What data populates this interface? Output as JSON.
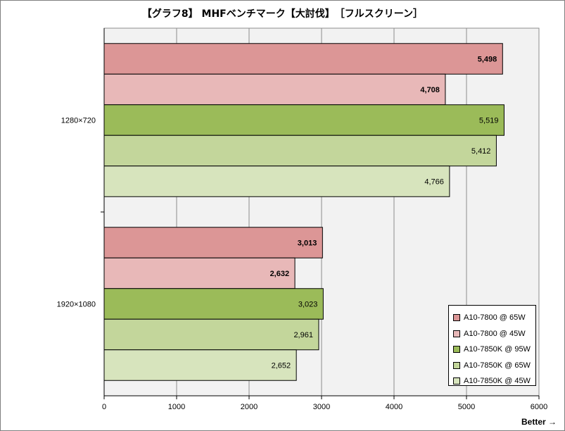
{
  "title": "【グラフ8】 MHFベンチマーク【大討伐】　［フルスクリーン］",
  "better_label": "Better →",
  "chart_data": {
    "type": "bar",
    "orientation": "horizontal",
    "title": "【グラフ8】 MHFベンチマーク【大討伐】　［フルスクリーン］",
    "categories": [
      "1280×720",
      "1920×1080"
    ],
    "series": [
      {
        "name": "A10-7800 @ 65W",
        "color": "#dc9696",
        "bold_label": true,
        "values": [
          5498,
          3013
        ],
        "labels": [
          "5,498",
          "3,013"
        ]
      },
      {
        "name": "A10-7800 @ 45W",
        "color": "#e8b8b8",
        "bold_label": true,
        "values": [
          4708,
          2632
        ],
        "labels": [
          "4,708",
          "2,632"
        ]
      },
      {
        "name": "A10-7850K @ 95W",
        "color": "#9bbb59",
        "bold_label": false,
        "values": [
          5519,
          3023
        ],
        "labels": [
          "5,519",
          "3,023"
        ]
      },
      {
        "name": "A10-7850K @ 65W",
        "color": "#c3d69b",
        "bold_label": false,
        "values": [
          5412,
          2961
        ],
        "labels": [
          "5,412",
          "2,961"
        ]
      },
      {
        "name": "A10-7850K @ 45W",
        "color": "#d7e4bd",
        "bold_label": false,
        "values": [
          4766,
          2652
        ],
        "labels": [
          "4,766",
          "2,652"
        ]
      }
    ],
    "xlim": [
      0,
      6000
    ],
    "xticks": [
      0,
      1000,
      2000,
      3000,
      4000,
      5000,
      6000
    ],
    "grid": true,
    "legend_position": "bottom-right"
  }
}
